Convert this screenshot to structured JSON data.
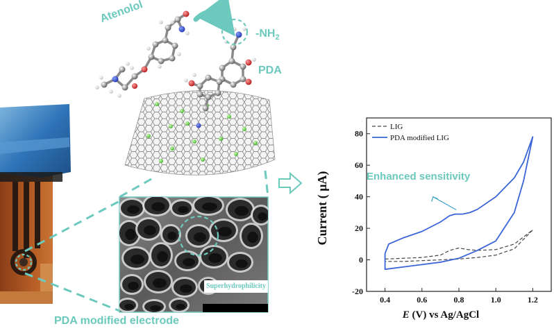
{
  "labels": {
    "atenolol": "Atenolol",
    "amine": "-NH",
    "amine_sub": "2",
    "pda": "PDA",
    "electrode": "PDA modified electrode",
    "sem_caption": "Superhydrophilicity",
    "annotation": "Enhanced sensitivity"
  },
  "colors": {
    "accent": "#6cc9bd",
    "lig_series": "#444444",
    "pda_series": "#3a64d8",
    "nitrogen_atom": "#1f3fbf",
    "oxygen_atom": "#cc1f1f",
    "dopant_atom": "#66d14a"
  },
  "icons": [
    "arrow-curved-icon",
    "arrow-hollow-right-icon",
    "dashed-circle-icon"
  ],
  "chart_data": {
    "type": "line",
    "title": "",
    "xlabel": "E (V) vs Ag/AgCl",
    "xlabel_italic": "E",
    "xlabel_rest": " (V) vs Ag/AgCl",
    "ylabel": "Current ( μA)",
    "xlim": [
      0.3,
      1.3
    ],
    "ylim": [
      -20,
      90
    ],
    "xticks": [
      0.4,
      0.6,
      0.8,
      1.0,
      1.2
    ],
    "xtick_labels": [
      "0.4",
      "0.6",
      "0.8",
      "1.0",
      "1.2"
    ],
    "yticks": [
      -20,
      0,
      20,
      40,
      60,
      80
    ],
    "ytick_labels": [
      "-20",
      "0",
      "20",
      "40",
      "60",
      "80"
    ],
    "grid": false,
    "legend_position": "top-left",
    "series": [
      {
        "name": "LIG",
        "style": "dashed",
        "x": [
          0.4,
          0.5,
          0.6,
          0.7,
          0.75,
          0.8,
          0.85,
          0.9,
          1.0,
          1.1,
          1.2,
          1.2,
          1.1,
          1.0,
          0.9,
          0.8,
          0.7,
          0.6,
          0.5,
          0.4
        ],
        "y": [
          0.5,
          1,
          1.5,
          3,
          6,
          7.5,
          6.5,
          6,
          6.5,
          10,
          19,
          19,
          7,
          3,
          1.5,
          0.5,
          0,
          -0.5,
          -1,
          -1
        ]
      },
      {
        "name": "PDA modified LIG",
        "style": "solid",
        "x": [
          0.4,
          0.42,
          0.5,
          0.6,
          0.7,
          0.75,
          0.78,
          0.82,
          0.86,
          0.9,
          1.0,
          1.1,
          1.15,
          1.2,
          1.2,
          1.15,
          1.1,
          1.0,
          0.9,
          0.8,
          0.7,
          0.6,
          0.5,
          0.4,
          0.4
        ],
        "y": [
          4,
          10,
          14,
          18,
          24,
          28,
          29,
          29,
          30,
          32,
          40,
          52,
          62,
          78,
          78,
          50,
          30,
          12,
          6,
          1,
          -1.5,
          -3,
          -4.5,
          -6,
          4
        ]
      }
    ],
    "annotation": {
      "text": "Enhanced sensitivity",
      "point_x": 0.77,
      "point_y": 30
    }
  }
}
